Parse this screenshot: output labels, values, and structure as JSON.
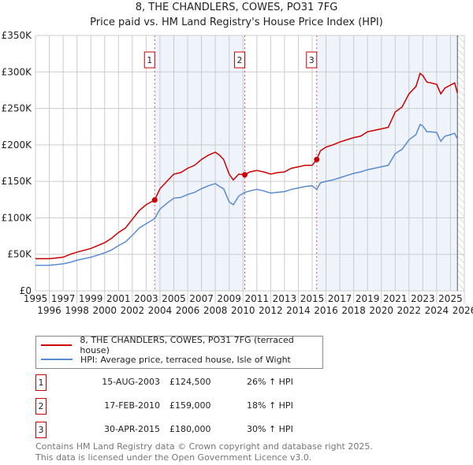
{
  "chart_data": {
    "type": "line",
    "title": "8, THE CHANDLERS, COWES, PO31 7FG",
    "subtitle": "Price paid vs. HM Land Registry's House Price Index (HPI)",
    "xlim": [
      1995,
      2026
    ],
    "ylim": [
      0,
      350000
    ],
    "x_ticks": [
      "1995",
      "1996",
      "1997",
      "1998",
      "1999",
      "2000",
      "2001",
      "2002",
      "2003",
      "2004",
      "2005",
      "2006",
      "2007",
      "2008",
      "2009",
      "2010",
      "2011",
      "2012",
      "2013",
      "2014",
      "2015",
      "2016",
      "2017",
      "2018",
      "2019",
      "2020",
      "2021",
      "2022",
      "2023",
      "2024",
      "2025",
      "2026"
    ],
    "y_ticks": [
      {
        "v": 0,
        "l": "£0"
      },
      {
        "v": 50000,
        "l": "£50K"
      },
      {
        "v": 100000,
        "l": "£100K"
      },
      {
        "v": 150000,
        "l": "£150K"
      },
      {
        "v": 200000,
        "l": "£200K"
      },
      {
        "v": 250000,
        "l": "£250K"
      },
      {
        "v": 300000,
        "l": "£300K"
      },
      {
        "v": 350000,
        "l": "£350K"
      }
    ],
    "grid": true,
    "series": [
      {
        "name": "8, THE CHANDLERS, COWES, PO31 7FG (terraced house)",
        "color": "#cc0000",
        "x": [
          1995,
          1996,
          1997,
          1997.5,
          1998,
          1999,
          2000,
          2000.5,
          2001,
          2001.5,
          2002,
          2002.5,
          2003,
          2003.62,
          2004,
          2004.5,
          2005,
          2005.5,
          2006,
          2006.5,
          2007,
          2007.5,
          2008,
          2008.3,
          2008.6,
          2009,
          2009.3,
          2009.7,
          2010.13,
          2010.5,
          2011,
          2011.5,
          2012,
          2012.5,
          2013,
          2013.5,
          2014,
          2014.5,
          2015,
          2015.33,
          2015.6,
          2016,
          2016.5,
          2017,
          2017.5,
          2018,
          2018.5,
          2019,
          2019.5,
          2020,
          2020.5,
          2021,
          2021.5,
          2022,
          2022.5,
          2022.8,
          2023,
          2023.3,
          2023.6,
          2024,
          2024.3,
          2024.6,
          2025,
          2025.3,
          2025.5
        ],
        "values": [
          44000,
          44000,
          46000,
          50000,
          53000,
          58000,
          66000,
          72000,
          80000,
          86000,
          98000,
          110000,
          118000,
          124500,
          140000,
          150000,
          160000,
          162000,
          168000,
          172000,
          180000,
          186000,
          190000,
          186000,
          180000,
          160000,
          152000,
          160000,
          159000,
          163000,
          165000,
          163000,
          160000,
          162000,
          163000,
          168000,
          170000,
          172000,
          172000,
          180000,
          192000,
          197000,
          200000,
          204000,
          207000,
          210000,
          212000,
          218000,
          220000,
          222000,
          224000,
          245000,
          252000,
          270000,
          280000,
          298000,
          295000,
          286000,
          285000,
          283000,
          270000,
          278000,
          282000,
          285000,
          271000
        ]
      },
      {
        "name": "HPI: Average price, terraced house, Isle of Wight",
        "color": "#5b8bd0",
        "x": [
          1995,
          1996,
          1997,
          1997.5,
          1998,
          1999,
          2000,
          2000.5,
          2001,
          2001.5,
          2002,
          2002.5,
          2003,
          2003.62,
          2004,
          2004.5,
          2005,
          2005.5,
          2006,
          2006.5,
          2007,
          2007.5,
          2008,
          2008.3,
          2008.6,
          2009,
          2009.3,
          2009.7,
          2010.13,
          2010.5,
          2011,
          2011.5,
          2012,
          2012.5,
          2013,
          2013.5,
          2014,
          2014.5,
          2015,
          2015.33,
          2015.6,
          2016,
          2016.5,
          2017,
          2017.5,
          2018,
          2018.5,
          2019,
          2019.5,
          2020,
          2020.5,
          2021,
          2021.5,
          2022,
          2022.5,
          2022.8,
          2023,
          2023.3,
          2023.6,
          2024,
          2024.3,
          2024.6,
          2025,
          2025.3,
          2025.5
        ],
        "values": [
          35000,
          35000,
          37000,
          39000,
          42000,
          46000,
          52000,
          56000,
          62000,
          67000,
          76000,
          86000,
          92000,
          99000,
          112000,
          120000,
          127000,
          128000,
          132000,
          135000,
          140000,
          144000,
          147000,
          143000,
          140000,
          122000,
          118000,
          130000,
          135000,
          137000,
          139000,
          137000,
          134000,
          135000,
          136000,
          139000,
          141000,
          143000,
          144000,
          139000,
          148000,
          150000,
          152000,
          155000,
          158000,
          161000,
          163000,
          166000,
          168000,
          170000,
          172000,
          188000,
          194000,
          207000,
          214000,
          228000,
          226000,
          218000,
          218000,
          217000,
          205000,
          212000,
          214000,
          216000,
          208000
        ]
      }
    ],
    "shaded_ranges": [
      [
        2003.62,
        2010.13
      ],
      [
        2015.33,
        2025.5
      ]
    ],
    "hatched_from": 2025.5,
    "sales": [
      {
        "n": "1",
        "x": 2003.62,
        "date": "15-AUG-2003",
        "price": 124500,
        "price_label": "£124,500",
        "hpi": "26% ↑ HPI"
      },
      {
        "n": "2",
        "x": 2010.13,
        "date": "17-FEB-2010",
        "price": 159000,
        "price_label": "£159,000",
        "hpi": "18% ↑ HPI"
      },
      {
        "n": "3",
        "x": 2015.33,
        "date": "30-APR-2015",
        "price": 180000,
        "price_label": "£180,000",
        "hpi": "30% ↑ HPI"
      }
    ]
  },
  "footer": {
    "line1": "Contains HM Land Registry data © Crown copyright and database right 2025.",
    "line2": "This data is licensed under the Open Government Licence v3.0."
  }
}
